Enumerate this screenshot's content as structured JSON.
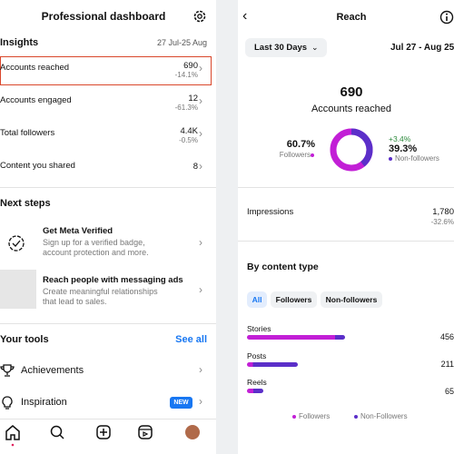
{
  "dashboard": {
    "title": "Professional dashboard",
    "insights": {
      "heading": "Insights",
      "date_range": "27 Jul-25 Aug",
      "rows": [
        {
          "label": "Accounts reached",
          "value": "690",
          "change": "-14.1%"
        },
        {
          "label": "Accounts engaged",
          "value": "12",
          "change": "-61.3%"
        },
        {
          "label": "Total followers",
          "value": "4.4K",
          "change": "-0.5%"
        },
        {
          "label": "Content you shared",
          "value": "8"
        }
      ]
    },
    "next_steps": {
      "heading": "Next steps",
      "items": [
        {
          "title": "Get Meta Verified",
          "description": [
            "Sign up for a verified badge,",
            "account protection and more."
          ]
        },
        {
          "title": "Reach people with messaging ads",
          "description": [
            "Create meaningful relationships",
            "that lead to sales."
          ]
        }
      ]
    },
    "tools": {
      "heading": "Your tools",
      "see_all": "See all",
      "items": [
        {
          "label": "Achievements"
        },
        {
          "label": "Inspiration",
          "badge": "NEW"
        }
      ]
    }
  },
  "reach": {
    "title": "Reach",
    "period": "Last 30 Days",
    "date_range": "Jul 27 - Aug 25",
    "total": "690",
    "total_label": "Accounts reached",
    "followers": {
      "percent": "60.7%",
      "label": "Followers"
    },
    "non_followers": {
      "change": "+3.4%",
      "percent": "39.3%",
      "label": "Non-followers"
    },
    "impressions": {
      "label": "Impressions",
      "value": "1,780",
      "change": "-32.6%"
    },
    "by_content": {
      "heading": "By content type",
      "tabs": [
        "All",
        "Followers",
        "Non-followers"
      ],
      "rows": [
        {
          "label": "Stories",
          "value": "456"
        },
        {
          "label": "Posts",
          "value": "211"
        },
        {
          "label": "Reels",
          "value": "65"
        }
      ],
      "legend": [
        "Followers",
        "Non-Followers"
      ]
    }
  }
}
